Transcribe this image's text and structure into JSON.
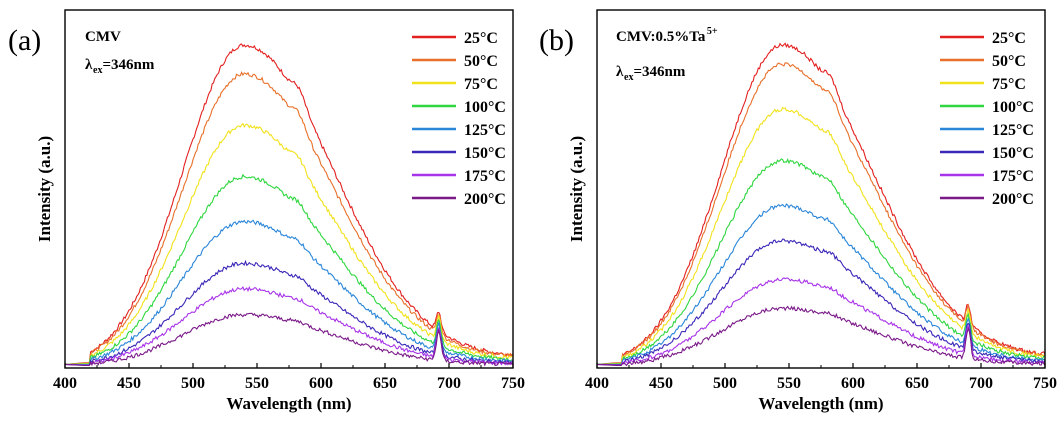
{
  "chart_data": [
    {
      "type": "line",
      "panel_label": "(a)",
      "annotation": {
        "sample": "CMV",
        "excitation_prefix": "λ",
        "excitation_sub": "ex",
        "excitation_value": "=346nm"
      },
      "xlabel": "Wavelength (nm)",
      "ylabel": "Intensity (a.u.)",
      "xlim": [
        400,
        750
      ],
      "xticks": [
        400,
        450,
        500,
        550,
        600,
        650,
        700,
        750
      ],
      "yticks_labeled": false,
      "legend_position": "top-right",
      "peak_wavelength": 540,
      "sharp_peak_wavelength": 692,
      "series": [
        {
          "name": "25°C",
          "color": "#e32020",
          "peak": 1.0
        },
        {
          "name": "50°C",
          "color": "#e8702a",
          "peak": 0.91
        },
        {
          "name": "75°C",
          "color": "#f2e21c",
          "peak": 0.75
        },
        {
          "name": "100°C",
          "color": "#2fd63f",
          "peak": 0.59
        },
        {
          "name": "125°C",
          "color": "#2a86d8",
          "peak": 0.45
        },
        {
          "name": "150°C",
          "color": "#3a28b8",
          "peak": 0.32
        },
        {
          "name": "175°C",
          "color": "#a834e8",
          "peak": 0.24
        },
        {
          "name": "200°C",
          "color": "#7a1a88",
          "peak": 0.16
        }
      ]
    },
    {
      "type": "line",
      "panel_label": "(b)",
      "annotation": {
        "sample": "CMV:0.5%Ta",
        "sample_sup": "5+",
        "excitation_prefix": "λ",
        "excitation_sub": "ex",
        "excitation_value": "=346nm"
      },
      "xlabel": "Wavelength (nm)",
      "ylabel": "Intensity (a.u.)",
      "xlim": [
        400,
        750
      ],
      "xticks": [
        400,
        450,
        500,
        550,
        600,
        650,
        700,
        750
      ],
      "yticks_labeled": false,
      "legend_position": "top-right",
      "peak_wavelength": 545,
      "sharp_peak_wavelength": 690,
      "series": [
        {
          "name": "25°C",
          "color": "#e32020",
          "peak": 1.0
        },
        {
          "name": "50°C",
          "color": "#e8702a",
          "peak": 0.94
        },
        {
          "name": "75°C",
          "color": "#f2e21c",
          "peak": 0.8
        },
        {
          "name": "100°C",
          "color": "#2fd63f",
          "peak": 0.64
        },
        {
          "name": "125°C",
          "color": "#2a86d8",
          "peak": 0.5
        },
        {
          "name": "150°C",
          "color": "#3a28b8",
          "peak": 0.39
        },
        {
          "name": "175°C",
          "color": "#a834e8",
          "peak": 0.27
        },
        {
          "name": "200°C",
          "color": "#7a1a88",
          "peak": 0.18
        }
      ]
    }
  ]
}
